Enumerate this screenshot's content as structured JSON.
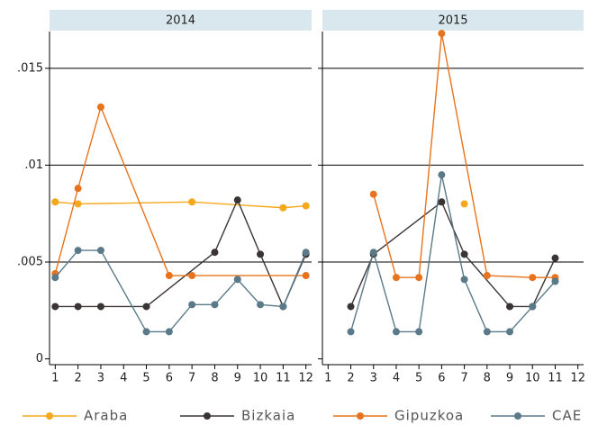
{
  "chart_data": [
    {
      "type": "line",
      "title": "2014",
      "xlim": [
        0.75,
        12.25
      ],
      "xticks": [
        1,
        2,
        3,
        4,
        5,
        6,
        7,
        8,
        9,
        10,
        11,
        12
      ],
      "ylim": [
        -0.0003,
        0.0169
      ],
      "yticks": [
        0,
        {
          "value": 0.005,
          "label": ".005"
        },
        {
          "value": 0.01,
          "label": ".01"
        },
        {
          "value": 0.015,
          "label": ".015"
        }
      ],
      "grid": true,
      "legend": "bottom",
      "series": [
        {
          "name": "Araba",
          "color": "#f5a81c",
          "x": [
            1,
            2,
            7,
            11,
            12
          ],
          "values": [
            0.0081,
            0.008,
            0.0081,
            0.0078,
            0.0079
          ]
        },
        {
          "name": "Bizkaia",
          "color": "#3b3434",
          "x": [
            1,
            2,
            3,
            5,
            8,
            9,
            10,
            11,
            12
          ],
          "values": [
            0.0027,
            0.0027,
            0.0027,
            0.0027,
            0.0055,
            0.0082,
            0.0054,
            0.0027,
            0.0054
          ]
        },
        {
          "name": "Gipuzkoa",
          "color": "#e8731c",
          "x": [
            1,
            2,
            3,
            6,
            7,
            12
          ],
          "values": [
            0.0044,
            0.0088,
            0.013,
            0.0043,
            0.0043,
            0.0043
          ]
        },
        {
          "name": "CAE",
          "color": "#5b7a89",
          "x": [
            1,
            2,
            3,
            5,
            6,
            7,
            8,
            9,
            10,
            11,
            12
          ],
          "values": [
            0.0042,
            0.0056,
            0.0056,
            0.0014,
            0.0014,
            0.0028,
            0.0028,
            0.0041,
            0.0028,
            0.0027,
            0.0055
          ]
        }
      ]
    },
    {
      "type": "line",
      "title": "2015",
      "xlim": [
        0.75,
        12.25
      ],
      "xticks": [
        1,
        2,
        3,
        4,
        5,
        6,
        7,
        8,
        9,
        10,
        11,
        12
      ],
      "ylim": [
        -0.0003,
        0.0169
      ],
      "yticks": [
        0,
        {
          "value": 0.005,
          "label": ".005"
        },
        {
          "value": 0.01,
          "label": ".01"
        },
        {
          "value": 0.015,
          "label": ".015"
        }
      ],
      "grid": true,
      "series": [
        {
          "name": "Araba",
          "color": "#f5a81c",
          "x": [
            7
          ],
          "values": [
            0.008
          ]
        },
        {
          "name": "Bizkaia",
          "color": "#3b3434",
          "x": [
            2,
            3,
            6,
            7,
            9,
            10,
            11
          ],
          "values": [
            0.0027,
            0.0054,
            0.0081,
            0.0054,
            0.0027,
            0.0027,
            0.0052
          ]
        },
        {
          "name": "Gipuzkoa",
          "color": "#e8731c",
          "x": [
            3,
            4,
            5,
            6,
            8,
            10,
            11
          ],
          "values": [
            0.0085,
            0.0042,
            0.0042,
            0.0168,
            0.0043,
            0.0042,
            0.0042
          ]
        },
        {
          "name": "CAE",
          "color": "#5b7a89",
          "x": [
            2,
            3,
            4,
            5,
            6,
            7,
            8,
            9,
            10,
            11
          ],
          "values": [
            0.0014,
            0.0055,
            0.0014,
            0.0014,
            0.0095,
            0.0041,
            0.0014,
            0.0014,
            0.0027,
            0.004
          ]
        }
      ]
    }
  ]
}
